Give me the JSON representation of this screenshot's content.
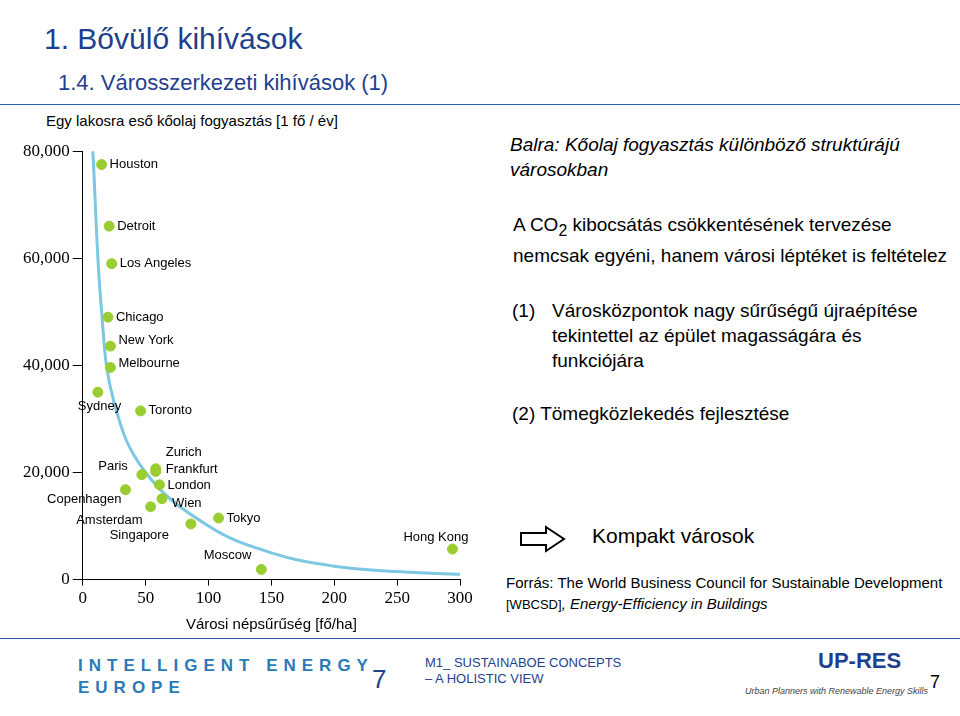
{
  "chart_data": {
    "type": "scatter",
    "y_label": "Egy lakosra eső kőolaj fogyasztás [1 fő / év]",
    "x_label": "Városi népsűrűség [fő/ha]",
    "point_labels": [
      "Houston",
      "Detroit",
      "Los Angeles",
      "Chicago",
      "New York",
      "Melbourne",
      "Sydney",
      "Toronto",
      "Zurich",
      "Paris",
      "Frankfurt",
      "London",
      "Copenhagen",
      "Wien",
      "Amsterdam",
      "Tokyo",
      "Singapore",
      "Moscow",
      "Hong Kong"
    ],
    "x": [
      15,
      21,
      23,
      20,
      22,
      22,
      12,
      46,
      58,
      47,
      58,
      61,
      34,
      63,
      54,
      108,
      86,
      142,
      294
    ],
    "values": [
      77500,
      66000,
      59000,
      49000,
      43600,
      39600,
      35000,
      31500,
      20700,
      19600,
      20200,
      17700,
      16800,
      15100,
      13600,
      11500,
      10400,
      1900,
      5700
    ],
    "color": "#9acd32",
    "marker": "circle",
    "series": [
      {
        "type": "line",
        "color": "#7cc8e2",
        "line_style": "solid",
        "x": [
          8,
          15,
          25,
          50,
          100,
          150,
          200,
          250,
          300
        ],
        "values": [
          80000,
          50000,
          33000,
          20000,
          10000,
          5000,
          2500,
          1500,
          1000
        ]
      }
    ],
    "xlim": [
      0,
      300
    ],
    "xticks": [
      0,
      50,
      100,
      150,
      200,
      250,
      300
    ],
    "ylim": [
      0,
      80000
    ],
    "yticks": [
      0,
      {
        "value": 20000,
        "label": "20,000"
      },
      {
        "value": 40000,
        "label": "40,000"
      },
      {
        "value": 60000,
        "label": "60,000"
      },
      {
        "value": 80000,
        "label": "80,000"
      }
    ],
    "grid": false,
    "data_labels": false
  },
  "slide": {
    "heading": "1.  Bővülő kihívások",
    "subheading": "1.4.  Városszerkezeti kihívások (1)",
    "left_note": "Balra: Kőolaj fogyasztás különböző struktúrájú városokban",
    "co2": {
      "before": "A CO",
      "sub": "2",
      "after": " kibocsátás csökkentésének tervezése nemcsak egyéni, hanem városi léptéket is feltételez"
    },
    "point1": {
      "num": "(1)",
      "text": "Városközpontok nagy sűrűségű újraépítése tekintettel az épület magasságára és funkciójára"
    },
    "point2": "(2) Tömegközlekedés fejlesztése",
    "conclusion": "Kompakt városok",
    "source": {
      "text": "Forrás: The World Business Council for Sustainable Development ",
      "org": "[WBCSD]",
      "title": ", Energy-Efficiency in Buildings"
    },
    "footer_left": [
      "INTELLIGENT ENERGY",
      "EUROPE"
    ],
    "page_mid": "7",
    "footer_mid": [
      "M1_ SUSTAINABOE CONCEPTS",
      "– A HOLISTIC VIEW"
    ],
    "logo": "UP-RES",
    "logo_sub": "Urban Planners with Renewable Energy Skills",
    "page_right": "7"
  }
}
